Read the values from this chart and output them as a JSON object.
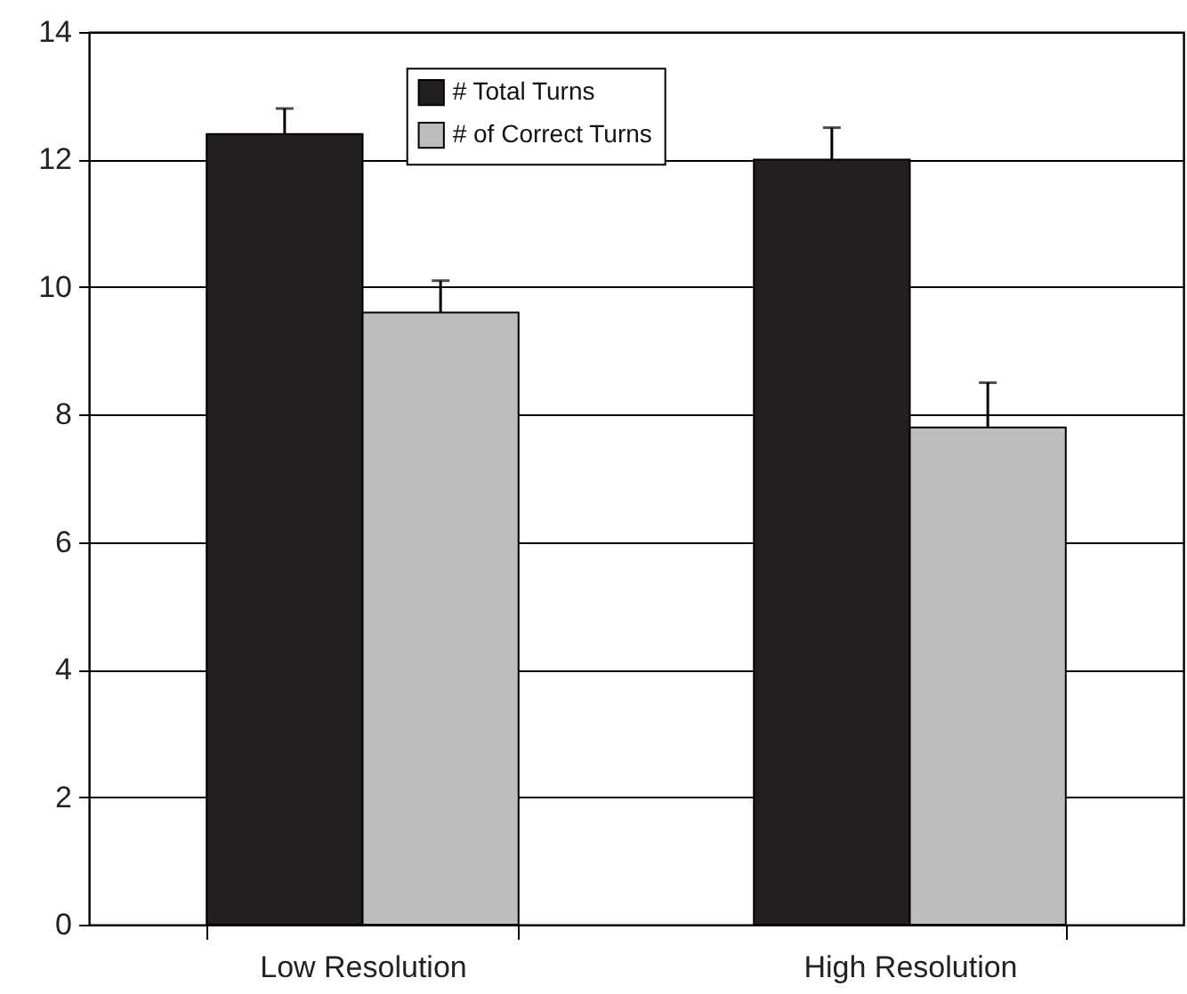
{
  "chart_data": {
    "type": "bar",
    "categories": [
      "Low Resolution",
      "High Resolution"
    ],
    "series": [
      {
        "name": "# Total Turns",
        "color": "#231f20",
        "values": [
          12.4,
          12.0
        ],
        "errors": [
          [
            12.4,
            12.8
          ],
          [
            12.0,
            12.5
          ]
        ]
      },
      {
        "name": "# of Correct Turns",
        "color": "#bdbdbd",
        "values": [
          9.6,
          7.8
        ],
        "errors": [
          [
            9.6,
            10.1
          ],
          [
            7.8,
            8.5
          ]
        ]
      }
    ],
    "ylim": [
      0,
      14
    ],
    "yticks": [
      0,
      2,
      4,
      6,
      8,
      10,
      12,
      14
    ],
    "grid": "y",
    "legend": "top"
  }
}
